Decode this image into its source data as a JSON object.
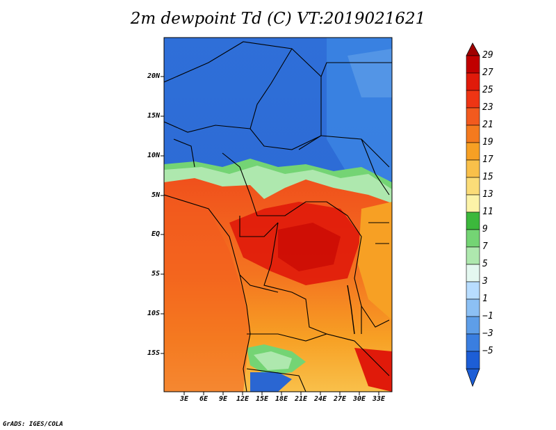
{
  "title": "2m dewpoint Td (C) VT:2019021621",
  "footer": "GrADS: IGES/COLA",
  "map": {
    "lat_labels": [
      "20N",
      "15N",
      "10N",
      "5N",
      "EQ",
      "5S",
      "10S",
      "15S"
    ],
    "lon_labels": [
      "3E",
      "6E",
      "9E",
      "12E",
      "15E",
      "18E",
      "21E",
      "24E",
      "27E",
      "30E",
      "33E"
    ]
  },
  "colorbar": {
    "labels": [
      "29",
      "27",
      "25",
      "23",
      "21",
      "19",
      "17",
      "15",
      "13",
      "11",
      "9",
      "7",
      "5",
      "3",
      "1",
      "−1",
      "−3",
      "−5"
    ],
    "colors": [
      "#c00000",
      "#e01a0a",
      "#ee3514",
      "#f25a1e",
      "#f47a1e",
      "#f7a024",
      "#f9c04a",
      "#fbdc78",
      "#fcf3a8",
      "#3cb83c",
      "#74d474",
      "#aee8ae",
      "#e4f8f0",
      "#b8ddff",
      "#8cc0f4",
      "#5e9ee8",
      "#3a7ee0",
      "#1d5ed6"
    ]
  },
  "colors": {
    "frame": "#000000",
    "background": "#ffffff"
  }
}
